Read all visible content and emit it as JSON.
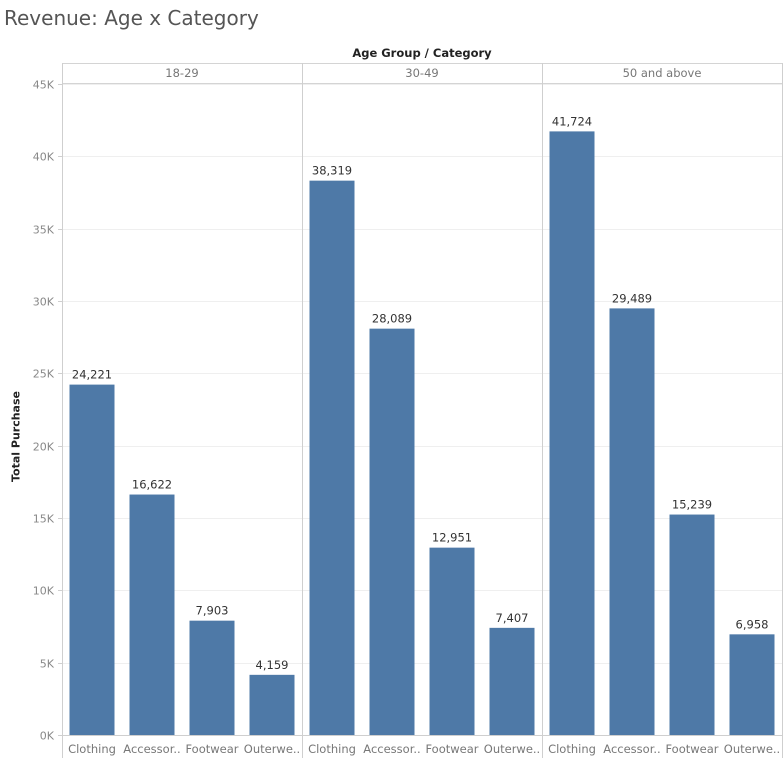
{
  "title": "Revenue: Age x Category",
  "chart_data": {
    "type": "bar",
    "title": "Revenue: Age x Category",
    "header_label": "Age Group  /  Category",
    "ylabel": "Total Purchase",
    "ylim": [
      0,
      45000
    ],
    "yticks": [
      "0K",
      "5K",
      "10K",
      "15K",
      "20K",
      "25K",
      "30K",
      "35K",
      "40K",
      "45K"
    ],
    "bar_color": "#4e79a7",
    "grid": true,
    "panels": [
      {
        "name": "18-29",
        "categories": [
          "Clothing",
          "Accessor..",
          "Footwear",
          "Outerwe.."
        ],
        "values": [
          24221,
          16622,
          7903,
          4159
        ],
        "labels": [
          "24,221",
          "16,622",
          "7,903",
          "4,159"
        ]
      },
      {
        "name": "30-49",
        "categories": [
          "Clothing",
          "Accessor..",
          "Footwear",
          "Outerwe.."
        ],
        "values": [
          38319,
          28089,
          12951,
          7407
        ],
        "labels": [
          "38,319",
          "28,089",
          "12,951",
          "7,407"
        ]
      },
      {
        "name": "50 and above",
        "categories": [
          "Clothing",
          "Accessor..",
          "Footwear",
          "Outerwe.."
        ],
        "values": [
          41724,
          29489,
          15239,
          6958
        ],
        "labels": [
          "41,724",
          "29,489",
          "15,239",
          "6,958"
        ]
      }
    ]
  }
}
